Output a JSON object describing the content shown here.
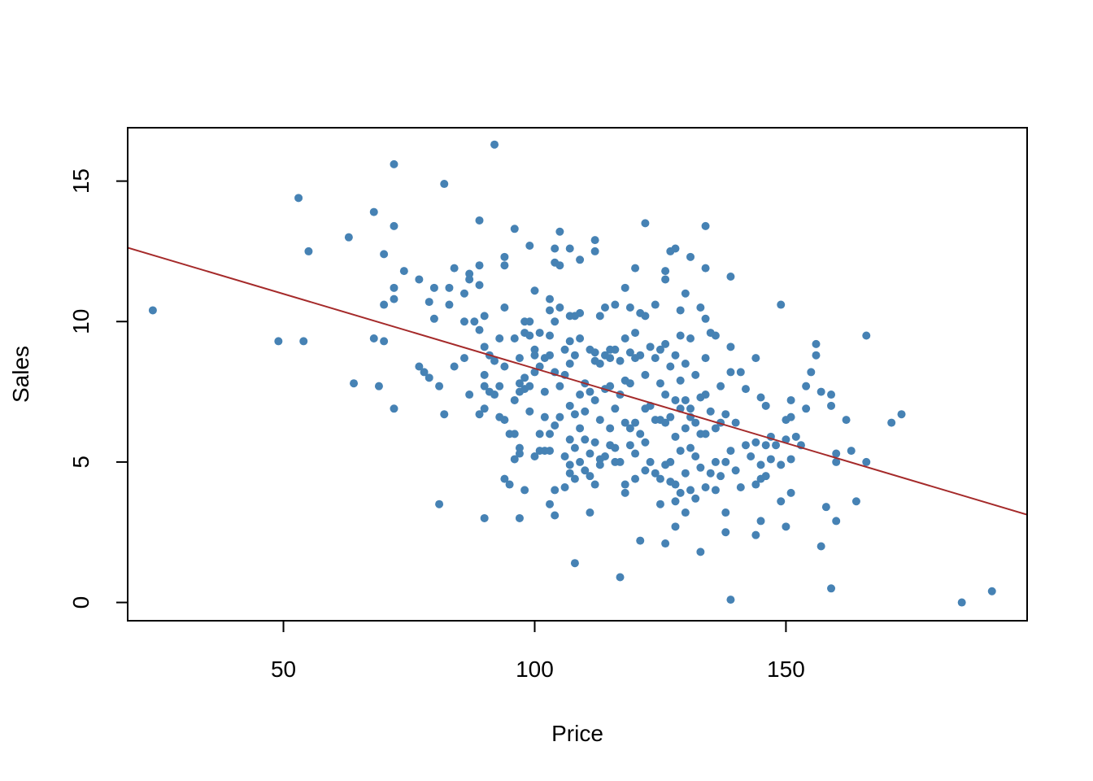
{
  "chart_data": {
    "type": "scatter",
    "title": "",
    "xlabel": "Price",
    "ylabel": "Sales",
    "xlim": [
      19,
      198
    ],
    "ylim": [
      -0.65,
      16.9
    ],
    "xticks": [
      50,
      100,
      150
    ],
    "yticks": [
      0,
      5,
      10,
      15
    ],
    "grid": false,
    "point_color": "#4682B4",
    "line_color": "#A52A2A",
    "regression_line": {
      "intercept": 13.64,
      "slope": -0.0531
    },
    "points": [
      [
        24,
        10.4
      ],
      [
        49,
        9.3
      ],
      [
        53,
        14.4
      ],
      [
        54,
        9.3
      ],
      [
        55,
        12.5
      ],
      [
        63,
        13.0
      ],
      [
        64,
        7.8
      ],
      [
        68,
        13.9
      ],
      [
        68,
        9.4
      ],
      [
        69,
        7.7
      ],
      [
        70,
        12.4
      ],
      [
        70,
        9.3
      ],
      [
        70,
        10.6
      ],
      [
        72,
        15.6
      ],
      [
        72,
        13.4
      ],
      [
        72,
        11.2
      ],
      [
        72,
        10.8
      ],
      [
        72,
        6.9
      ],
      [
        74,
        11.8
      ],
      [
        77,
        11.5
      ],
      [
        77,
        8.4
      ],
      [
        78,
        8.2
      ],
      [
        79,
        10.7
      ],
      [
        79,
        8.0
      ],
      [
        80,
        11.2
      ],
      [
        80,
        10.1
      ],
      [
        81,
        7.7
      ],
      [
        81,
        3.5
      ],
      [
        82,
        14.9
      ],
      [
        82,
        6.7
      ],
      [
        83,
        10.6
      ],
      [
        83,
        11.2
      ],
      [
        84,
        8.4
      ],
      [
        84,
        11.9
      ],
      [
        86,
        11.0
      ],
      [
        86,
        10.0
      ],
      [
        86,
        8.7
      ],
      [
        87,
        11.7
      ],
      [
        87,
        11.5
      ],
      [
        87,
        7.4
      ],
      [
        88,
        10.0
      ],
      [
        89,
        13.6
      ],
      [
        89,
        12.0
      ],
      [
        89,
        11.3
      ],
      [
        89,
        9.7
      ],
      [
        89,
        6.7
      ],
      [
        90,
        10.2
      ],
      [
        90,
        9.1
      ],
      [
        90,
        8.1
      ],
      [
        90,
        7.7
      ],
      [
        90,
        6.9
      ],
      [
        90,
        3.0
      ],
      [
        91,
        8.8
      ],
      [
        91,
        7.5
      ],
      [
        92,
        16.3
      ],
      [
        92,
        8.6
      ],
      [
        92,
        7.4
      ],
      [
        93,
        9.4
      ],
      [
        93,
        7.7
      ],
      [
        93,
        6.6
      ],
      [
        94,
        12.3
      ],
      [
        94,
        12.0
      ],
      [
        94,
        10.5
      ],
      [
        94,
        8.4
      ],
      [
        94,
        6.5
      ],
      [
        94,
        4.4
      ],
      [
        95,
        6.0
      ],
      [
        95,
        4.2
      ],
      [
        96,
        13.3
      ],
      [
        96,
        9.4
      ],
      [
        96,
        7.2
      ],
      [
        96,
        6.0
      ],
      [
        96,
        5.1
      ],
      [
        97,
        8.7
      ],
      [
        97,
        7.8
      ],
      [
        97,
        7.5
      ],
      [
        97,
        5.5
      ],
      [
        97,
        5.3
      ],
      [
        97,
        3.0
      ],
      [
        98,
        10.0
      ],
      [
        98,
        9.6
      ],
      [
        98,
        8.0
      ],
      [
        98,
        7.6
      ],
      [
        98,
        4.0
      ],
      [
        99,
        12.7
      ],
      [
        99,
        10.0
      ],
      [
        99,
        9.5
      ],
      [
        99,
        7.7
      ],
      [
        99,
        6.8
      ],
      [
        100,
        11.1
      ],
      [
        100,
        9.0
      ],
      [
        100,
        8.8
      ],
      [
        100,
        8.2
      ],
      [
        100,
        5.2
      ],
      [
        101,
        9.6
      ],
      [
        101,
        8.4
      ],
      [
        101,
        6.0
      ],
      [
        101,
        5.4
      ],
      [
        102,
        8.7
      ],
      [
        102,
        7.5
      ],
      [
        102,
        6.6
      ],
      [
        102,
        5.4
      ],
      [
        103,
        10.8
      ],
      [
        103,
        10.4
      ],
      [
        103,
        9.5
      ],
      [
        103,
        8.8
      ],
      [
        103,
        6.0
      ],
      [
        103,
        5.4
      ],
      [
        103,
        3.5
      ],
      [
        104,
        12.6
      ],
      [
        104,
        12.1
      ],
      [
        104,
        10.0
      ],
      [
        104,
        8.2
      ],
      [
        104,
        6.3
      ],
      [
        104,
        4.0
      ],
      [
        104,
        3.1
      ],
      [
        105,
        13.2
      ],
      [
        105,
        12.0
      ],
      [
        105,
        10.5
      ],
      [
        105,
        7.7
      ],
      [
        105,
        6.6
      ],
      [
        106,
        9.0
      ],
      [
        106,
        8.1
      ],
      [
        106,
        5.2
      ],
      [
        106,
        4.1
      ],
      [
        107,
        12.6
      ],
      [
        107,
        10.2
      ],
      [
        107,
        9.3
      ],
      [
        107,
        8.5
      ],
      [
        107,
        7.0
      ],
      [
        107,
        5.8
      ],
      [
        107,
        4.9
      ],
      [
        107,
        4.6
      ],
      [
        108,
        10.2
      ],
      [
        108,
        8.8
      ],
      [
        108,
        6.7
      ],
      [
        108,
        5.5
      ],
      [
        108,
        4.4
      ],
      [
        108,
        1.4
      ],
      [
        109,
        12.2
      ],
      [
        109,
        10.3
      ],
      [
        109,
        9.4
      ],
      [
        109,
        7.4
      ],
      [
        109,
        6.2
      ],
      [
        109,
        5.0
      ],
      [
        110,
        7.8
      ],
      [
        110,
        6.8
      ],
      [
        110,
        5.8
      ],
      [
        110,
        4.7
      ],
      [
        111,
        9.0
      ],
      [
        111,
        7.5
      ],
      [
        111,
        5.3
      ],
      [
        111,
        4.5
      ],
      [
        111,
        3.2
      ],
      [
        112,
        12.9
      ],
      [
        112,
        12.5
      ],
      [
        112,
        8.9
      ],
      [
        112,
        8.6
      ],
      [
        112,
        7.2
      ],
      [
        112,
        5.7
      ],
      [
        112,
        4.2
      ],
      [
        113,
        10.2
      ],
      [
        113,
        8.5
      ],
      [
        113,
        6.5
      ],
      [
        113,
        5.1
      ],
      [
        113,
        4.9
      ],
      [
        114,
        10.5
      ],
      [
        114,
        8.8
      ],
      [
        114,
        7.6
      ],
      [
        114,
        5.2
      ],
      [
        115,
        9.0
      ],
      [
        115,
        8.7
      ],
      [
        115,
        7.7
      ],
      [
        115,
        6.2
      ],
      [
        115,
        5.6
      ],
      [
        116,
        10.6
      ],
      [
        116,
        9.0
      ],
      [
        116,
        6.9
      ],
      [
        116,
        5.5
      ],
      [
        116,
        5.0
      ],
      [
        117,
        8.6
      ],
      [
        117,
        7.4
      ],
      [
        117,
        5.0
      ],
      [
        117,
        0.9
      ],
      [
        118,
        11.2
      ],
      [
        118,
        9.4
      ],
      [
        118,
        7.9
      ],
      [
        118,
        6.4
      ],
      [
        118,
        4.2
      ],
      [
        118,
        3.9
      ],
      [
        119,
        10.5
      ],
      [
        119,
        8.9
      ],
      [
        119,
        7.8
      ],
      [
        119,
        6.2
      ],
      [
        119,
        5.6
      ],
      [
        120,
        11.9
      ],
      [
        120,
        9.6
      ],
      [
        120,
        8.7
      ],
      [
        120,
        6.4
      ],
      [
        120,
        5.3
      ],
      [
        120,
        4.4
      ],
      [
        121,
        10.3
      ],
      [
        121,
        8.8
      ],
      [
        121,
        6.0
      ],
      [
        121,
        2.2
      ],
      [
        122,
        13.5
      ],
      [
        122,
        10.2
      ],
      [
        122,
        8.1
      ],
      [
        122,
        6.9
      ],
      [
        122,
        5.7
      ],
      [
        122,
        4.7
      ],
      [
        123,
        9.1
      ],
      [
        123,
        7.0
      ],
      [
        123,
        5.0
      ],
      [
        124,
        10.6
      ],
      [
        124,
        8.7
      ],
      [
        124,
        6.5
      ],
      [
        124,
        4.6
      ],
      [
        125,
        9.0
      ],
      [
        125,
        7.8
      ],
      [
        125,
        6.5
      ],
      [
        125,
        4.4
      ],
      [
        125,
        3.5
      ],
      [
        126,
        11.8
      ],
      [
        126,
        11.5
      ],
      [
        126,
        9.2
      ],
      [
        126,
        7.4
      ],
      [
        126,
        6.4
      ],
      [
        126,
        4.9
      ],
      [
        126,
        2.1
      ],
      [
        127,
        12.5
      ],
      [
        127,
        8.4
      ],
      [
        127,
        6.6
      ],
      [
        127,
        5.0
      ],
      [
        127,
        4.3
      ],
      [
        128,
        12.6
      ],
      [
        128,
        8.8
      ],
      [
        128,
        7.2
      ],
      [
        128,
        5.9
      ],
      [
        128,
        4.2
      ],
      [
        128,
        3.6
      ],
      [
        128,
        2.7
      ],
      [
        129,
        10.4
      ],
      [
        129,
        9.5
      ],
      [
        129,
        7.9
      ],
      [
        129,
        6.9
      ],
      [
        129,
        5.4
      ],
      [
        129,
        3.9
      ],
      [
        130,
        11.0
      ],
      [
        130,
        8.5
      ],
      [
        130,
        7.2
      ],
      [
        130,
        6.2
      ],
      [
        130,
        4.6
      ],
      [
        130,
        3.2
      ],
      [
        131,
        12.3
      ],
      [
        131,
        9.4
      ],
      [
        131,
        6.9
      ],
      [
        131,
        6.6
      ],
      [
        131,
        5.5
      ],
      [
        131,
        4.0
      ],
      [
        132,
        8.1
      ],
      [
        132,
        6.4
      ],
      [
        132,
        5.2
      ],
      [
        132,
        3.7
      ],
      [
        133,
        10.5
      ],
      [
        133,
        7.3
      ],
      [
        133,
        6.0
      ],
      [
        133,
        4.8
      ],
      [
        133,
        1.8
      ],
      [
        134,
        13.4
      ],
      [
        134,
        11.9
      ],
      [
        134,
        10.1
      ],
      [
        134,
        8.7
      ],
      [
        134,
        7.4
      ],
      [
        134,
        6.0
      ],
      [
        134,
        4.1
      ],
      [
        135,
        9.6
      ],
      [
        135,
        6.8
      ],
      [
        135,
        4.6
      ],
      [
        136,
        9.5
      ],
      [
        136,
        6.2
      ],
      [
        136,
        5.0
      ],
      [
        136,
        4.0
      ],
      [
        137,
        7.7
      ],
      [
        137,
        6.4
      ],
      [
        137,
        4.5
      ],
      [
        138,
        6.7
      ],
      [
        138,
        5.0
      ],
      [
        138,
        3.2
      ],
      [
        138,
        2.5
      ],
      [
        139,
        11.6
      ],
      [
        139,
        9.1
      ],
      [
        139,
        8.2
      ],
      [
        139,
        5.4
      ],
      [
        139,
        0.1
      ],
      [
        140,
        6.4
      ],
      [
        140,
        4.7
      ],
      [
        141,
        8.2
      ],
      [
        141,
        4.1
      ],
      [
        142,
        7.6
      ],
      [
        142,
        5.6
      ],
      [
        143,
        5.2
      ],
      [
        144,
        8.7
      ],
      [
        144,
        5.7
      ],
      [
        144,
        4.2
      ],
      [
        144,
        2.4
      ],
      [
        145,
        7.3
      ],
      [
        145,
        4.9
      ],
      [
        145,
        4.4
      ],
      [
        145,
        2.9
      ],
      [
        146,
        7.0
      ],
      [
        146,
        5.6
      ],
      [
        146,
        4.5
      ],
      [
        147,
        5.9
      ],
      [
        147,
        5.1
      ],
      [
        148,
        5.6
      ],
      [
        149,
        10.6
      ],
      [
        149,
        4.9
      ],
      [
        149,
        3.6
      ],
      [
        150,
        6.5
      ],
      [
        150,
        5.8
      ],
      [
        150,
        2.7
      ],
      [
        151,
        7.2
      ],
      [
        151,
        6.6
      ],
      [
        151,
        5.1
      ],
      [
        151,
        3.9
      ],
      [
        152,
        5.9
      ],
      [
        153,
        5.6
      ],
      [
        154,
        7.7
      ],
      [
        154,
        6.9
      ],
      [
        155,
        8.2
      ],
      [
        156,
        9.2
      ],
      [
        156,
        8.8
      ],
      [
        157,
        7.5
      ],
      [
        157,
        2.0
      ],
      [
        158,
        3.4
      ],
      [
        159,
        7.4
      ],
      [
        159,
        7.0
      ],
      [
        159,
        0.5
      ],
      [
        160,
        5.3
      ],
      [
        160,
        5.0
      ],
      [
        160,
        2.9
      ],
      [
        162,
        6.5
      ],
      [
        163,
        5.4
      ],
      [
        164,
        3.6
      ],
      [
        166,
        9.5
      ],
      [
        166,
        5.0
      ],
      [
        171,
        6.4
      ],
      [
        173,
        6.7
      ],
      [
        185,
        0.0
      ],
      [
        191,
        0.4
      ]
    ]
  }
}
